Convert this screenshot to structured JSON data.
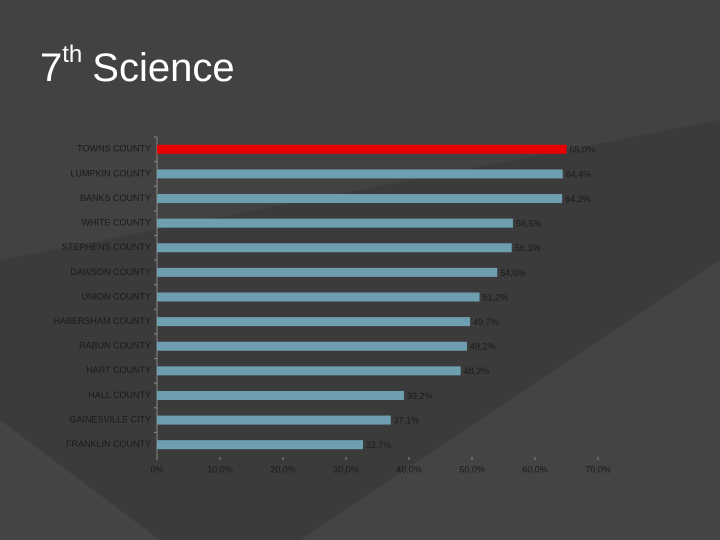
{
  "chart_data": {
    "type": "bar",
    "orientation": "horizontal",
    "title": "7",
    "title_superscript": "th",
    "title_rest": "Science",
    "categories": [
      "TOWNS COUNTY",
      "LUMPKIN COUNTY",
      "BANKS COUNTY",
      "WHITE COUNTY",
      "STEPHENS COUNTY",
      "DAWSON COUNTY",
      "UNION COUNTY",
      "HABERSHAM COUNTY",
      "RABUN COUNTY",
      "HART COUNTY",
      "HALL COUNTY",
      "GAINESVILLE CITY",
      "FRANKLIN COUNTY"
    ],
    "values": [
      65.0,
      64.4,
      64.3,
      56.5,
      56.3,
      54.0,
      51.2,
      49.7,
      49.2,
      48.2,
      39.2,
      37.1,
      32.7
    ],
    "value_labels": [
      "65,0%",
      "64,4%",
      "64,3%",
      "56,5%",
      "56,3%",
      "54,0%",
      "51,2%",
      "49,7%",
      "49,2%",
      "48,2%",
      "39,2%",
      "37,1%",
      "32,7%"
    ],
    "colors": [
      "#e60000",
      "#6e9fb0",
      "#6e9fb0",
      "#6e9fb0",
      "#6e9fb0",
      "#6e9fb0",
      "#6e9fb0",
      "#6e9fb0",
      "#6e9fb0",
      "#6e9fb0",
      "#6e9fb0",
      "#6e9fb0",
      "#6e9fb0"
    ],
    "xlim": [
      0,
      70
    ],
    "xticks": [
      {
        "value": 0,
        "label": "0%"
      },
      {
        "value": 10,
        "label": "10,0%"
      },
      {
        "value": 20,
        "label": "20,0%"
      },
      {
        "value": 30,
        "label": "30,0%"
      },
      {
        "value": 40,
        "label": "40,0%"
      },
      {
        "value": 50,
        "label": "50,0%"
      },
      {
        "value": 60,
        "label": "60,0%"
      },
      {
        "value": 70,
        "label": "70,0%"
      }
    ]
  }
}
